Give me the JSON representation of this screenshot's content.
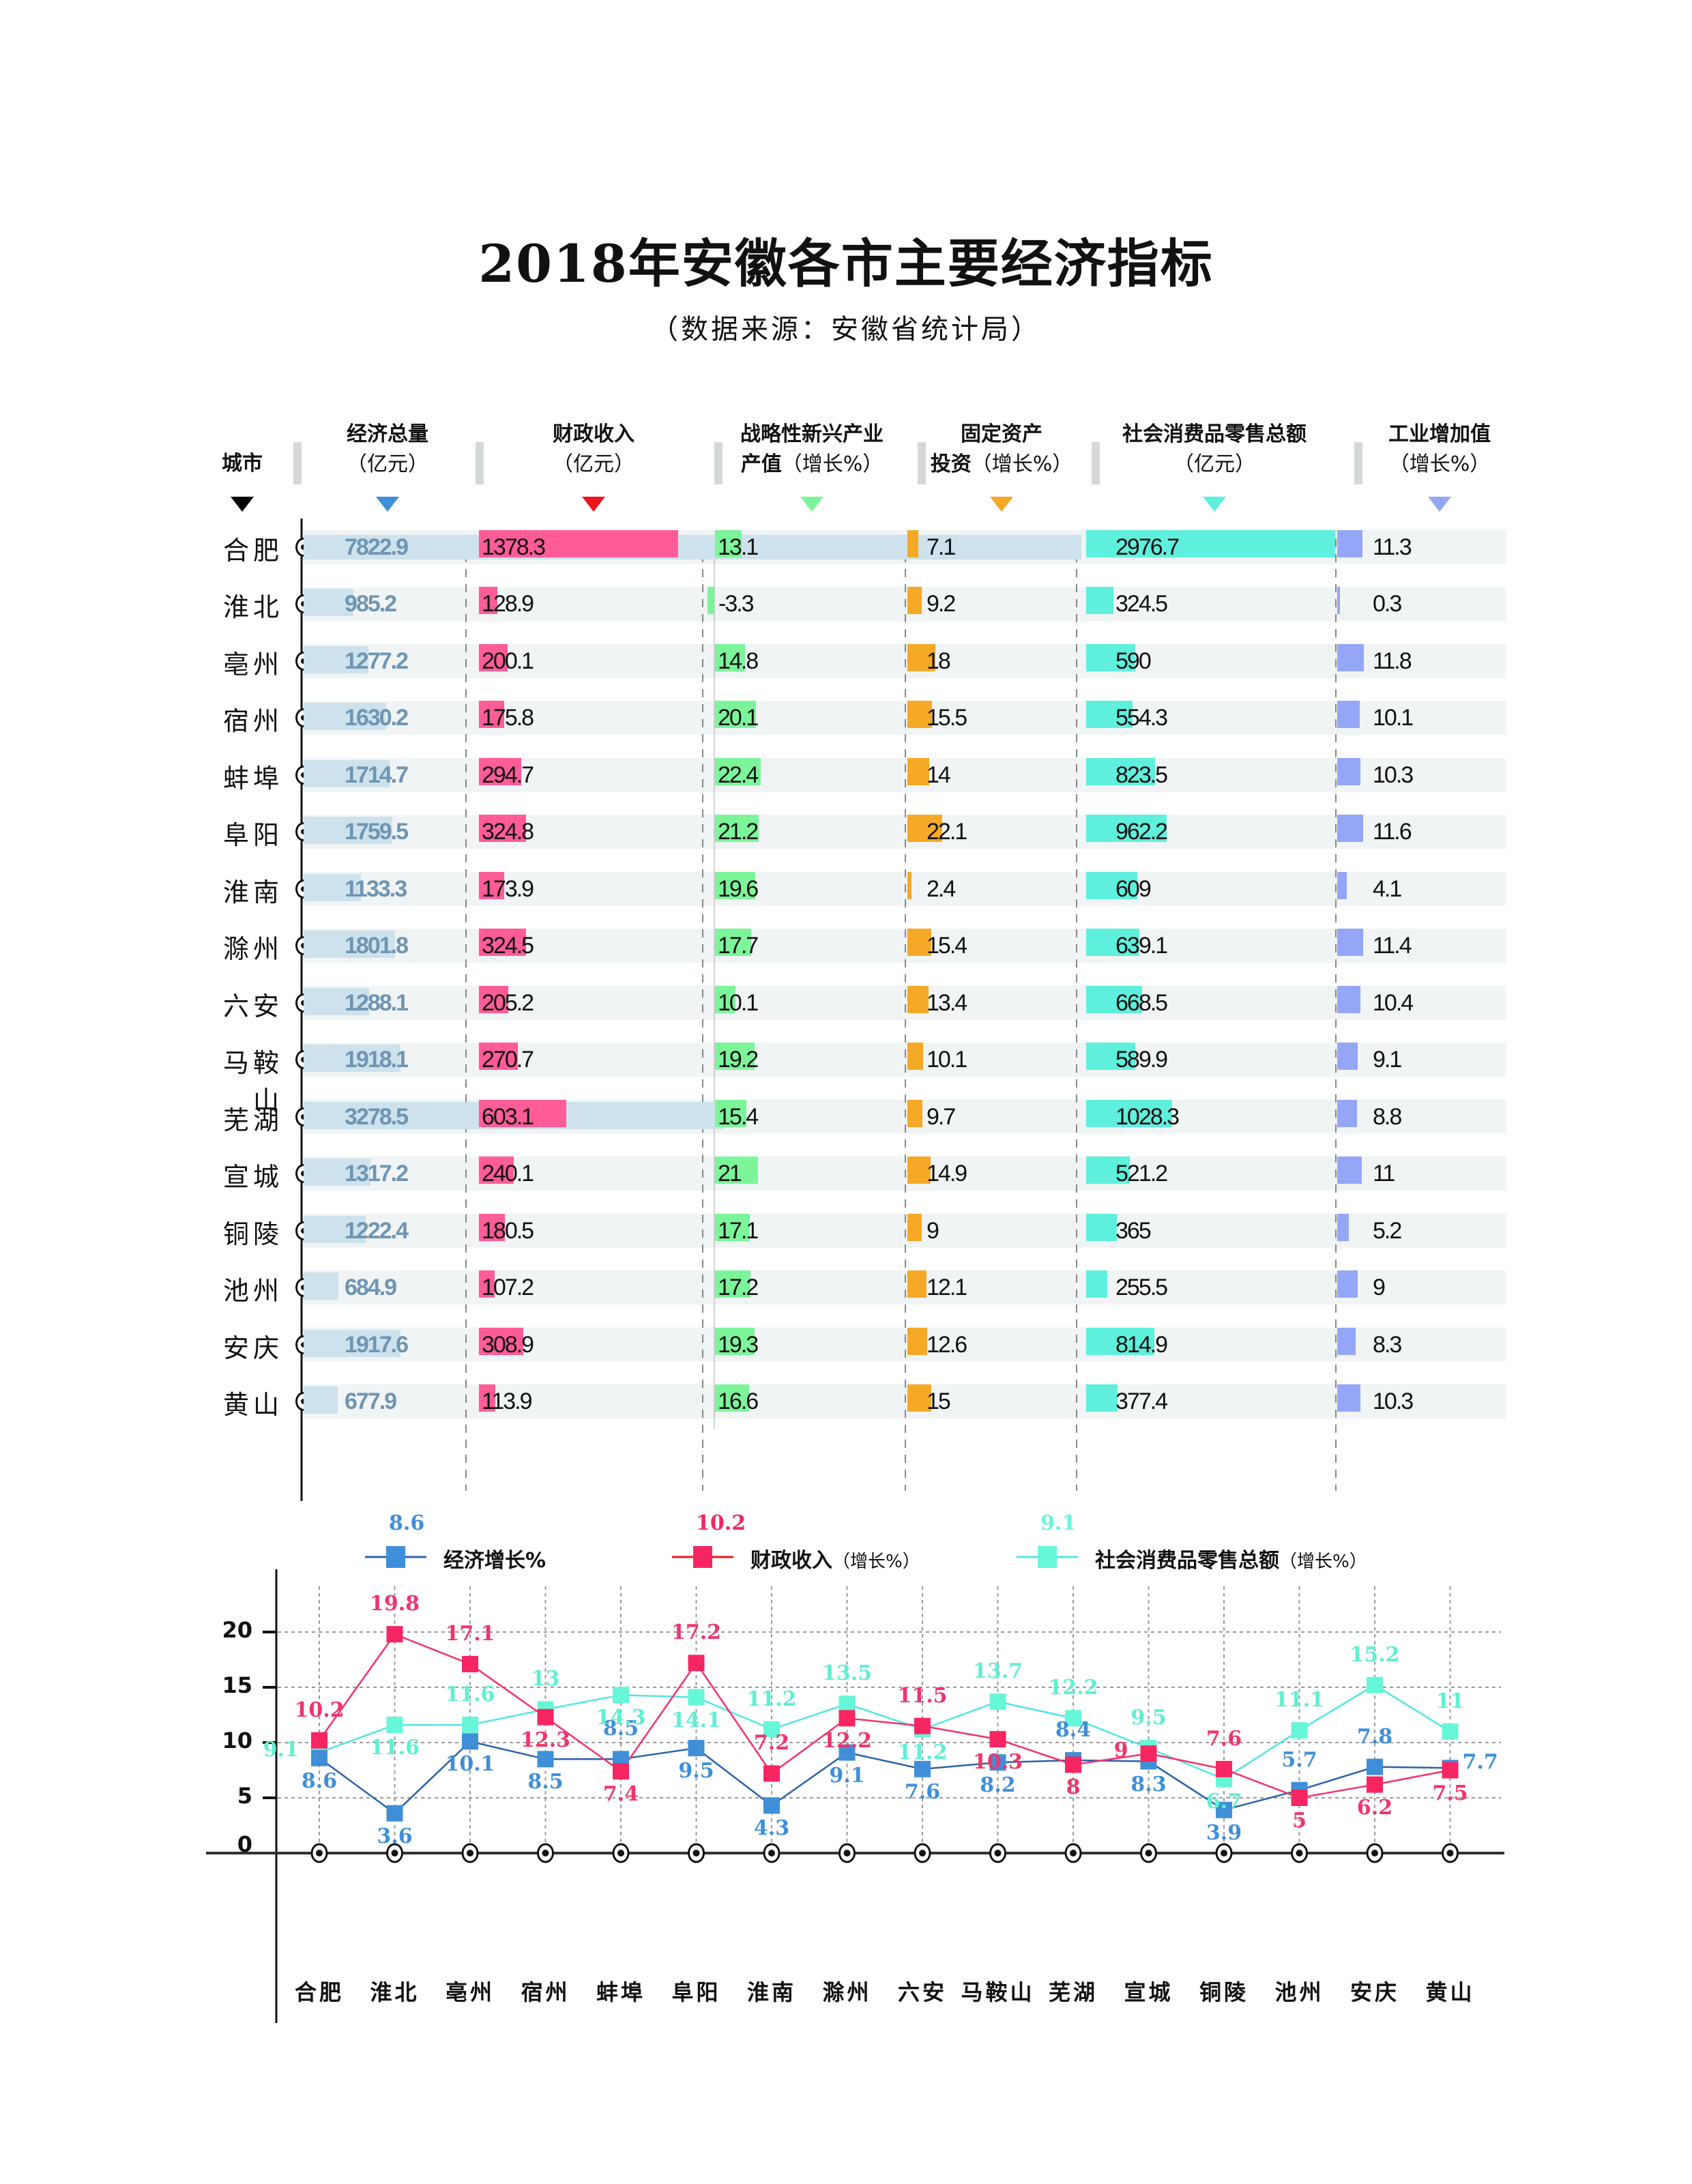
{
  "title": "2018年安徽各市主要经济指标",
  "subtitle": "（数据来源：安徽省统计局）",
  "table": {
    "columns": [
      {
        "key": "city",
        "line1": "城市",
        "line2": "",
        "color": "#000000"
      },
      {
        "key": "gdp",
        "line1": "经济总量",
        "line2": "（亿元）",
        "color": "#3e8fd8"
      },
      {
        "key": "revenue",
        "line1": "财政收入",
        "line2": "（亿元）",
        "color": "#f0141e"
      },
      {
        "key": "emerging",
        "line1": "战略性新兴产业",
        "line2_bold": "产值",
        "line2": "（增长%）",
        "color": "#7cf59a"
      },
      {
        "key": "fixed_invest",
        "line1": "固定资产",
        "line2_bold": "投资",
        "line2": "（增长%）",
        "color": "#f5a927"
      },
      {
        "key": "retail",
        "line1": "社会消费品零售总额",
        "line2": "（亿元）",
        "color": "#5ef0dc"
      },
      {
        "key": "industry",
        "line1": "工业增加值",
        "line2": "（增长%）",
        "color": "#94a6f5"
      }
    ],
    "rows": [
      {
        "city": "合肥",
        "gdp": "7822.9",
        "revenue": "1378.3",
        "emerging": "13.1",
        "fixed_invest": "7.1",
        "retail": "2976.7",
        "industry": "11.3"
      },
      {
        "city": "淮北",
        "gdp": "985.2",
        "revenue": "128.9",
        "emerging": "-3.3",
        "fixed_invest": "9.2",
        "retail": "324.5",
        "industry": "0.3"
      },
      {
        "city": "亳州",
        "gdp": "1277.2",
        "revenue": "200.1",
        "emerging": "14.8",
        "fixed_invest": "18",
        "retail": "590",
        "industry": "11.8"
      },
      {
        "city": "宿州",
        "gdp": "1630.2",
        "revenue": "175.8",
        "emerging": "20.1",
        "fixed_invest": "15.5",
        "retail": "554.3",
        "industry": "10.1"
      },
      {
        "city": "蚌埠",
        "gdp": "1714.7",
        "revenue": "294.7",
        "emerging": "22.4",
        "fixed_invest": "14",
        "retail": "823.5",
        "industry": "10.3"
      },
      {
        "city": "阜阳",
        "gdp": "1759.5",
        "revenue": "324.8",
        "emerging": "21.2",
        "fixed_invest": "22.1",
        "retail": "962.2",
        "industry": "11.6"
      },
      {
        "city": "淮南",
        "gdp": "1133.3",
        "revenue": "173.9",
        "emerging": "19.6",
        "fixed_invest": "2.4",
        "retail": "609",
        "industry": "4.1"
      },
      {
        "city": "滁州",
        "gdp": "1801.8",
        "revenue": "324.5",
        "emerging": "17.7",
        "fixed_invest": "15.4",
        "retail": "639.1",
        "industry": "11.4"
      },
      {
        "city": "六安",
        "gdp": "1288.1",
        "revenue": "205.2",
        "emerging": "10.1",
        "fixed_invest": "13.4",
        "retail": "668.5",
        "industry": "10.4"
      },
      {
        "city": "马鞍山",
        "gdp": "1918.1",
        "revenue": "270.7",
        "emerging": "19.2",
        "fixed_invest": "10.1",
        "retail": "589.9",
        "industry": "9.1"
      },
      {
        "city": "芜湖",
        "gdp": "3278.5",
        "revenue": "603.1",
        "emerging": "15.4",
        "fixed_invest": "9.7",
        "retail": "1028.3",
        "industry": "8.8"
      },
      {
        "city": "宣城",
        "gdp": "1317.2",
        "revenue": "240.1",
        "emerging": "21",
        "fixed_invest": "14.9",
        "retail": "521.2",
        "industry": "11"
      },
      {
        "city": "铜陵",
        "gdp": "1222.4",
        "revenue": "180.5",
        "emerging": "17.1",
        "fixed_invest": "9",
        "retail": "365",
        "industry": "5.2"
      },
      {
        "city": "池州",
        "gdp": "684.9",
        "revenue": "107.2",
        "emerging": "17.2",
        "fixed_invest": "12.1",
        "retail": "255.5",
        "industry": "9"
      },
      {
        "city": "安庆",
        "gdp": "1917.6",
        "revenue": "308.9",
        "emerging": "19.3",
        "fixed_invest": "12.6",
        "retail": "814.9",
        "industry": "8.3"
      },
      {
        "city": "黄山",
        "gdp": "677.9",
        "revenue": "113.9",
        "emerging": "16.6",
        "fixed_invest": "15",
        "retail": "377.4",
        "industry": "10.3"
      }
    ]
  },
  "legend": [
    {
      "name": "经济增长%",
      "suffix": "",
      "sample_value": "8.6",
      "color": "#3e8fd8",
      "line_color": "#2a62a8"
    },
    {
      "name": "财政收入",
      "suffix": "（增长%）",
      "sample_value": "10.2",
      "color": "#f72662",
      "line_color": "#f0141e"
    },
    {
      "name": "社会消费品零售总额",
      "suffix": "（增长%）",
      "sample_value": "9.1",
      "color": "#66f7d8",
      "line_color": "#52e6e6"
    }
  ],
  "chart_data": [
    {
      "type": "table",
      "title": "2018年安徽各市主要经济指标",
      "subtitle": "（数据来源：安徽省统计局）",
      "columns": [
        "城市",
        "经济总量（亿元）",
        "财政收入（亿元）",
        "战略性新兴产业产值（增长%）",
        "固定资产投资（增长%）",
        "社会消费品零售总额（亿元）",
        "工业增加值（增长%）"
      ],
      "categories": [
        "合肥",
        "淮北",
        "亳州",
        "宿州",
        "蚌埠",
        "阜阳",
        "淮南",
        "滁州",
        "六安",
        "马鞍山",
        "芜湖",
        "宣城",
        "铜陵",
        "池州",
        "安庆",
        "黄山"
      ],
      "series": [
        {
          "name": "经济总量（亿元）",
          "values": [
            7822.9,
            985.2,
            1277.2,
            1630.2,
            1714.7,
            1759.5,
            1133.3,
            1801.8,
            1288.1,
            1918.1,
            3278.5,
            1317.2,
            1222.4,
            684.9,
            1917.6,
            677.9
          ]
        },
        {
          "name": "财政收入（亿元）",
          "values": [
            1378.3,
            128.9,
            200.1,
            175.8,
            294.7,
            324.8,
            173.9,
            324.5,
            205.2,
            270.7,
            603.1,
            240.1,
            180.5,
            107.2,
            308.9,
            113.9
          ]
        },
        {
          "name": "战略性新兴产业产值（增长%）",
          "values": [
            13.1,
            -3.3,
            14.8,
            20.1,
            22.4,
            21.2,
            19.6,
            17.7,
            10.1,
            19.2,
            15.4,
            21,
            17.1,
            17.2,
            19.3,
            16.6
          ]
        },
        {
          "name": "固定资产投资（增长%）",
          "values": [
            7.1,
            9.2,
            18,
            15.5,
            14,
            22.1,
            2.4,
            15.4,
            13.4,
            10.1,
            9.7,
            14.9,
            9,
            12.1,
            12.6,
            15
          ]
        },
        {
          "name": "社会消费品零售总额（亿元）",
          "values": [
            2976.7,
            324.5,
            590,
            554.3,
            823.5,
            962.2,
            609,
            639.1,
            668.5,
            589.9,
            1028.3,
            521.2,
            365,
            255.5,
            814.9,
            377.4
          ]
        },
        {
          "name": "工业增加值（增长%）",
          "values": [
            11.3,
            0.3,
            11.8,
            10.1,
            10.3,
            11.6,
            4.1,
            11.4,
            10.4,
            9.1,
            8.8,
            11,
            5.2,
            9,
            8.3,
            10.3
          ]
        }
      ]
    },
    {
      "type": "line",
      "title": "",
      "categories": [
        "合肥",
        "淮北",
        "亳州",
        "宿州",
        "蚌埠",
        "阜阳",
        "淮南",
        "滁州",
        "六安",
        "马鞍山",
        "芜湖",
        "宣城",
        "铜陵",
        "池州",
        "安庆",
        "黄山"
      ],
      "series": [
        {
          "name": "经济增长%",
          "color": "#3e8fd8",
          "values": [
            8.6,
            3.6,
            10.1,
            8.5,
            8.5,
            9.5,
            4.3,
            9.1,
            7.6,
            8.2,
            8.4,
            8.3,
            3.9,
            5.7,
            7.8,
            7.7
          ]
        },
        {
          "name": "财政收入（增长%）",
          "color": "#f72662",
          "values": [
            10.2,
            19.8,
            17.1,
            12.3,
            7.4,
            17.2,
            7.2,
            12.2,
            11.5,
            10.3,
            8,
            9,
            7.6,
            5,
            6.2,
            7.5
          ]
        },
        {
          "name": "社会消费品零售总额（增长%）",
          "color": "#66f7d8",
          "values": [
            9.1,
            11.6,
            11.6,
            13,
            14.3,
            14.1,
            11.2,
            13.5,
            11.2,
            13.7,
            12.2,
            9.5,
            6.7,
            11.1,
            15.2,
            11
          ]
        }
      ],
      "xlabel": "",
      "ylabel": "",
      "yticks": [
        0,
        5,
        10,
        15,
        20
      ],
      "ylim": [
        0,
        24
      ],
      "grid": true,
      "legend_position": "top"
    }
  ]
}
